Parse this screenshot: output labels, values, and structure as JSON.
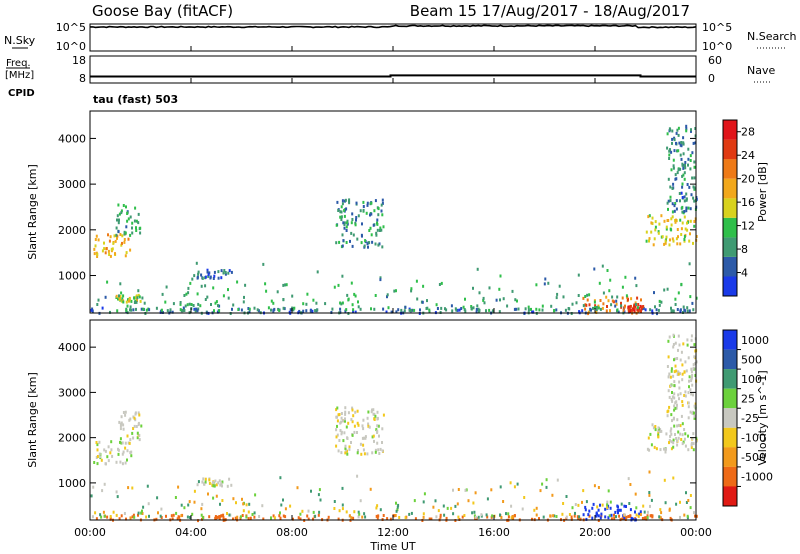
{
  "header": {
    "station": "Goose Bay (fitACF)",
    "beam_date": "Beam 15 17/Aug/2017 - 18/Aug/2017"
  },
  "noise_panel": {
    "left_label": "N.Sky",
    "left_ticks": [
      "10^5",
      "10^0"
    ],
    "right_ticks": [
      "10^5",
      "10^0"
    ],
    "right_label": "N.Search"
  },
  "freq_panel": {
    "left_label_1": "Freq.",
    "left_label_2": "[MHz]",
    "left_ticks": [
      "18",
      "8"
    ],
    "right_ticks": [
      "60",
      "0"
    ],
    "right_label": "Nave",
    "cpid_label": "CPID",
    "cpid_value": "tau (fast) 503"
  },
  "colors": {
    "power_scale": [
      "#1a3ae8",
      "#2c5aa8",
      "#3f9a72",
      "#2fbf4a",
      "#d8d21e",
      "#f2a81c",
      "#ee7a17",
      "#e03a12",
      "#e0141a"
    ],
    "velocity_scale": [
      "#1a3ae8",
      "#2c5aa8",
      "#3f9a72",
      "#6cd13c",
      "#c8c8c0",
      "#f2c81c",
      "#f29a1c",
      "#ee6a17",
      "#e01a14"
    ]
  },
  "chart_data": [
    {
      "type": "line",
      "title": "N.Sky / N.Search",
      "x": [
        "00:00",
        "04:00",
        "08:00",
        "12:00",
        "16:00",
        "20:00",
        "22:00",
        "00:00"
      ],
      "series": [
        {
          "name": "N.Sky",
          "values": [
            28000,
            30000,
            28000,
            45000,
            40000,
            38000,
            25000,
            26000
          ]
        }
      ],
      "yscale": "log",
      "ylim": [
        1,
        100000
      ]
    },
    {
      "type": "line",
      "title": "Freq. / Nave",
      "x": [
        "00:00",
        "12:00",
        "22:00",
        "00:00"
      ],
      "series": [
        {
          "name": "Freq.",
          "values": [
            10.4,
            10.8,
            10.4,
            10.4
          ]
        }
      ],
      "ylim": [
        8,
        18
      ]
    },
    {
      "type": "heatmap",
      "title": "Power",
      "xlabel": "",
      "ylabel": "Slant Range [km]",
      "x_ticks": [
        "00:00",
        "04:00",
        "08:00",
        "12:00",
        "16:00",
        "20:00",
        "00:00"
      ],
      "y_ticks": [
        1000,
        2000,
        3000,
        4000
      ],
      "ylim": [
        180,
        4600
      ],
      "xlim_hours": [
        0,
        24
      ],
      "colorbar_label": "Power [dB]",
      "colorbar_ticks": [
        4,
        8,
        12,
        16,
        20,
        24,
        28
      ],
      "colorbar_range": [
        0,
        30
      ],
      "regions": [
        {
          "t0": 0.1,
          "t1": 1.6,
          "r0": 1450,
          "r1": 1950,
          "value": 18
        },
        {
          "t0": 1.0,
          "t1": 2.0,
          "r0": 1900,
          "r1": 2600,
          "value": 10
        },
        {
          "t0": 4.2,
          "t1": 5.6,
          "r0": 950,
          "r1": 1150,
          "value": 6
        },
        {
          "t0": 9.7,
          "t1": 11.6,
          "r0": 1650,
          "r1": 2700,
          "value": 8
        },
        {
          "t0": 1.0,
          "t1": 2.0,
          "r0": 450,
          "r1": 600,
          "value": 14
        },
        {
          "t0": 0.0,
          "t1": 24.0,
          "r0": 200,
          "r1": 320,
          "value": 6
        },
        {
          "t0": 19.5,
          "t1": 21.8,
          "r0": 200,
          "r1": 560,
          "value": 22
        },
        {
          "t0": 21.2,
          "t1": 21.9,
          "r0": 250,
          "r1": 400,
          "value": 28
        },
        {
          "t0": 22.0,
          "t1": 24.0,
          "r0": 1700,
          "r1": 2350,
          "value": 16
        },
        {
          "t0": 22.8,
          "t1": 24.0,
          "r0": 2400,
          "r1": 4300,
          "value": 7
        }
      ]
    },
    {
      "type": "heatmap",
      "title": "Velocity",
      "xlabel": "Time UT",
      "ylabel": "Slant Range [km]",
      "x_ticks": [
        "00:00",
        "04:00",
        "08:00",
        "12:00",
        "16:00",
        "20:00",
        "00:00"
      ],
      "y_ticks": [
        1000,
        2000,
        3000,
        4000
      ],
      "ylim": [
        180,
        4600
      ],
      "xlim_hours": [
        0,
        24
      ],
      "colorbar_label": "Velocity [m s^-1]",
      "colorbar_ticks": [
        "1000",
        "500",
        "100",
        "25",
        "-25",
        "-100",
        "-500",
        "-1000"
      ],
      "regions": [
        {
          "t0": 0.1,
          "t1": 1.6,
          "r0": 1450,
          "r1": 1950,
          "value": 0
        },
        {
          "t0": 1.0,
          "t1": 2.0,
          "r0": 1900,
          "r1": 2600,
          "value": 0
        },
        {
          "t0": 9.7,
          "t1": 11.6,
          "r0": 1650,
          "r1": 2700,
          "value": 0
        },
        {
          "t0": 4.2,
          "t1": 5.6,
          "r0": 950,
          "r1": 1150,
          "value": 0
        },
        {
          "t0": 0.0,
          "t1": 24.0,
          "r0": 200,
          "r1": 320,
          "value": -80
        },
        {
          "t0": 19.5,
          "t1": 21.8,
          "r0": 200,
          "r1": 560,
          "value": 150
        },
        {
          "t0": 22.0,
          "t1": 24.0,
          "r0": 1700,
          "r1": 2350,
          "value": 0
        },
        {
          "t0": 22.8,
          "t1": 24.0,
          "r0": 2400,
          "r1": 4300,
          "value": 0
        }
      ]
    }
  ]
}
